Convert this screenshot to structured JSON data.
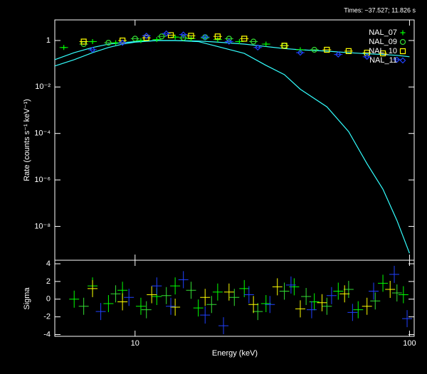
{
  "chart_data": [
    {
      "type": "scatter",
      "title": "Times: −37.527; 11.826 s",
      "y_label": "Rate (counts s⁻¹ keV⁻¹)",
      "xlog": true,
      "ylog": true,
      "xlim": [
        5.1,
        104
      ],
      "ylim": [
        3.5e-10,
        7.7
      ],
      "yticks": [
        1,
        {
          "value": 0.01,
          "label": "10⁻²"
        },
        {
          "value": 0.0001,
          "label": "10⁻⁴"
        },
        {
          "value": 1e-06,
          "label": "10⁻⁶"
        },
        {
          "value": 1e-08,
          "label": "10⁻⁸"
        }
      ],
      "legend": "top-right",
      "series": [
        {
          "name": "NAL_07",
          "color": "#00ff00",
          "marker": "plus",
          "x": [
            5.5,
            7,
            8.5,
            10.5,
            12,
            14,
            16,
            18,
            20,
            24,
            30,
            40
          ],
          "values": [
            0.5,
            0.9,
            0.8,
            1.0,
            1.1,
            1.4,
            1.2,
            1.3,
            1.1,
            0.9,
            0.7,
            0.4
          ]
        },
        {
          "name": "NAL_09",
          "color": "#33dd33",
          "marker": "circle",
          "x": [
            6.5,
            8,
            10,
            12.5,
            15,
            18,
            22,
            27,
            35,
            45
          ],
          "values": [
            0.7,
            0.8,
            1.2,
            1.5,
            1.3,
            1.4,
            1.2,
            0.9,
            0.6,
            0.4
          ]
        },
        {
          "name": "NAL_10",
          "color": "#ffff00",
          "marker": "square",
          "x": [
            6.5,
            9,
            11,
            13.5,
            16,
            20,
            25,
            35,
            50,
            60,
            70,
            80
          ],
          "values": [
            0.9,
            1.0,
            1.3,
            1.7,
            1.6,
            1.5,
            1.2,
            0.6,
            0.4,
            0.35,
            0.3,
            0.28
          ]
        },
        {
          "name": "NAL_11",
          "color": "#2040ff",
          "marker": "diamond",
          "x": [
            7,
            9,
            11,
            13,
            15,
            18,
            22,
            28,
            40,
            55,
            70,
            90
          ],
          "values": [
            0.4,
            0.8,
            1.6,
            2.0,
            1.8,
            1.4,
            0.9,
            0.5,
            0.3,
            0.25,
            0.2,
            0.15
          ]
        }
      ],
      "models": [
        {
          "color": "#33ffff",
          "x": [
            5.1,
            6,
            7,
            8,
            9,
            10,
            12,
            14,
            17,
            20,
            25,
            30,
            35,
            40,
            50,
            60,
            70,
            80,
            90,
            100
          ],
          "y": [
            0.08,
            0.15,
            0.3,
            0.5,
            0.7,
            0.85,
            1.0,
            1.0,
            0.9,
            0.55,
            0.28,
            0.085,
            0.034,
            0.008,
            0.0014,
            0.00012,
            5e-06,
            4e-07,
            1.8e-08,
            7e-10
          ]
        },
        {
          "color": "#33ffff",
          "x": [
            5.1,
            6,
            7,
            8,
            9,
            10,
            12,
            14,
            17,
            20,
            25,
            30,
            35,
            40,
            50,
            60,
            70,
            80,
            90,
            100
          ],
          "y": [
            0.15,
            0.3,
            0.5,
            0.7,
            0.8,
            0.9,
            1.0,
            1.0,
            0.95,
            0.85,
            0.7,
            0.55,
            0.45,
            0.4,
            0.35,
            0.3,
            0.27,
            0.25,
            0.23,
            0.2
          ]
        }
      ]
    },
    {
      "type": "scatter",
      "x_label": "Energy (keV)",
      "y_label": "Sigma",
      "xlog": true,
      "xlim": [
        5.1,
        104
      ],
      "ylim": [
        -4.2,
        4.4
      ],
      "xticks": [
        10,
        100
      ],
      "yticks": [
        -4,
        -2,
        0,
        2,
        4
      ],
      "series": [
        {
          "color": "#00ff00",
          "x": [
            6,
            7,
            8,
            9,
            10.5,
            12,
            14,
            17,
            20,
            25,
            30,
            38,
            45,
            55,
            65,
            80,
            95
          ],
          "values": [
            0,
            1.5,
            -0.5,
            1,
            -0.8,
            0.3,
            1.5,
            -1,
            0.8,
            1.2,
            -0.5,
            1.4,
            -0.3,
            0.9,
            -1.2,
            1.8,
            0.5
          ]
        },
        {
          "color": "#33dd33",
          "x": [
            6.5,
            8.5,
            11,
            13,
            16,
            19,
            23,
            28,
            35,
            42,
            50,
            60,
            75,
            90
          ],
          "values": [
            -0.8,
            0.6,
            -1.2,
            0.4,
            1,
            -0.6,
            0.2,
            -1.4,
            0.9,
            0.3,
            -0.8,
            1.1,
            -0.2,
            0.7
          ]
        },
        {
          "color": "#ffff00",
          "x": [
            7,
            9,
            11.5,
            14,
            18,
            22,
            27,
            33,
            40,
            48,
            58,
            70,
            85
          ],
          "values": [
            1.2,
            -0.3,
            0.5,
            -0.9,
            0.2,
            0.8,
            -0.6,
            1.4,
            -1.1,
            -0.4,
            0.6,
            -0.8,
            1.1
          ]
        },
        {
          "color": "#2040ff",
          "x": [
            7.5,
            9.5,
            12,
            13.5,
            15,
            18,
            21,
            26,
            31,
            37,
            44,
            52,
            62,
            74,
            88,
            98
          ],
          "values": [
            -1.4,
            0.2,
            1.5,
            -0.8,
            2.2,
            -1.8,
            -3,
            0.5,
            -0.6,
            1.6,
            -1.2,
            0.4,
            -1.5,
            0.9,
            2.8,
            -2.2
          ]
        }
      ]
    }
  ]
}
